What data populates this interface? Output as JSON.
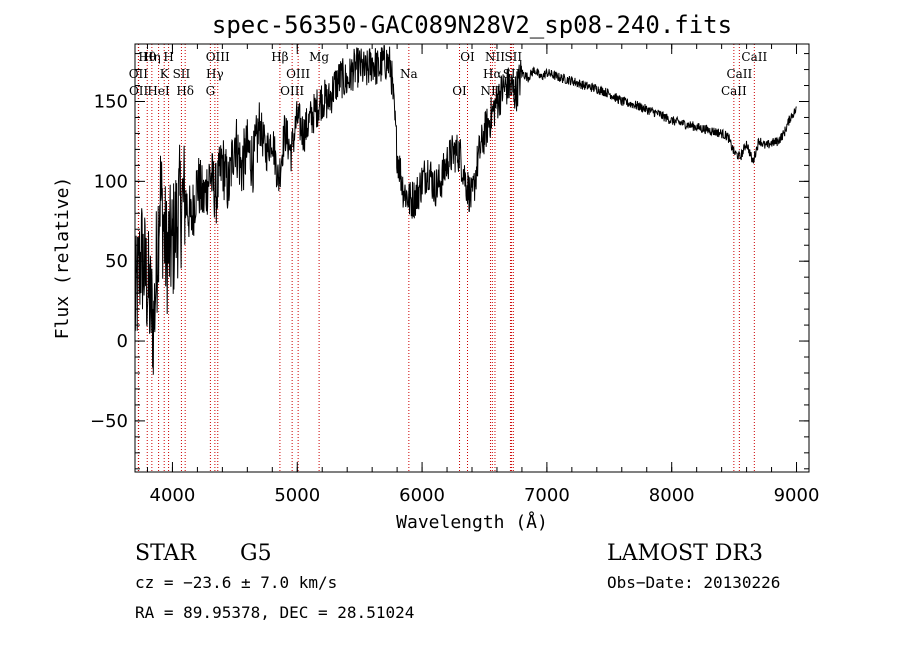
{
  "chart_data": {
    "type": "line",
    "title": "spec-56350-GAC089N28V2_sp08-240.fits",
    "xlabel": "Wavelength (Å)",
    "ylabel": "Flux (relative)",
    "xlim": [
      3700,
      9100
    ],
    "ylim": [
      -82,
      186
    ],
    "xticks": [
      4000,
      5000,
      6000,
      7000,
      8000,
      9000
    ],
    "yticks": [
      -50,
      0,
      50,
      100,
      150
    ],
    "series": [
      {
        "name": "flux",
        "x": [
          3700,
          3750,
          3800,
          3850,
          3900,
          3950,
          4000,
          4050,
          4100,
          4150,
          4200,
          4250,
          4300,
          4350,
          4400,
          4450,
          4500,
          4550,
          4600,
          4650,
          4700,
          4750,
          4800,
          4850,
          4900,
          4950,
          5000,
          5050,
          5100,
          5150,
          5200,
          5250,
          5300,
          5350,
          5400,
          5450,
          5500,
          5550,
          5600,
          5650,
          5700,
          5750,
          5800,
          5850,
          5900,
          5950,
          6000,
          6050,
          6100,
          6150,
          6200,
          6250,
          6300,
          6350,
          6400,
          6450,
          6500,
          6550,
          6600,
          6650,
          6700,
          6750,
          6800,
          6850,
          6900,
          6950,
          7000,
          7100,
          7200,
          7300,
          7400,
          7500,
          7600,
          7700,
          7800,
          7900,
          8000,
          8100,
          8200,
          8300,
          8400,
          8450,
          8500,
          8550,
          8600,
          8650,
          8700,
          8750,
          8800,
          8850,
          8900,
          8950,
          9000
        ],
        "y": [
          20,
          55,
          35,
          10,
          95,
          55,
          60,
          82,
          90,
          75,
          100,
          88,
          105,
          92,
          112,
          95,
          128,
          108,
          120,
          112,
          135,
          118,
          128,
          100,
          132,
          118,
          140,
          130,
          138,
          145,
          152,
          150,
          160,
          165,
          162,
          170,
          172,
          168,
          175,
          170,
          176,
          172,
          118,
          95,
          88,
          90,
          100,
          108,
          96,
          100,
          112,
          118,
          118,
          100,
          88,
          115,
          130,
          140,
          150,
          158,
          160,
          155,
          168,
          165,
          170,
          165,
          168,
          165,
          163,
          160,
          158,
          155,
          150,
          148,
          145,
          142,
          138,
          136,
          134,
          132,
          130,
          128,
          118,
          115,
          124,
          112,
          126,
          122,
          124,
          125,
          130,
          140,
          145
        ]
      }
    ],
    "spectral_lines": [
      {
        "label": "Hθ",
        "wavelength": 3798
      },
      {
        "label": "OII",
        "wavelength": 3727
      },
      {
        "label": "OII",
        "wavelength": 3729
      },
      {
        "label": "Hη",
        "wavelength": 3835
      },
      {
        "label": "K",
        "wavelength": 3934
      },
      {
        "label": "HeI",
        "wavelength": 3889
      },
      {
        "label": "H",
        "wavelength": 3969
      },
      {
        "label": "SII",
        "wavelength": 4072
      },
      {
        "label": "Hδ",
        "wavelength": 4102
      },
      {
        "label": "OIII",
        "wavelength": 4363
      },
      {
        "label": "Hγ",
        "wavelength": 4340
      },
      {
        "label": "G",
        "wavelength": 4304
      },
      {
        "label": "Hβ",
        "wavelength": 4861
      },
      {
        "label": "OIII",
        "wavelength": 5007
      },
      {
        "label": "OIII",
        "wavelength": 4959
      },
      {
        "label": "Mg",
        "wavelength": 5175
      },
      {
        "label": "Na",
        "wavelength": 5894
      },
      {
        "label": "OI",
        "wavelength": 6300
      },
      {
        "label": "OI",
        "wavelength": 6364
      },
      {
        "label": "Hα",
        "wavelength": 6563
      },
      {
        "label": "NII",
        "wavelength": 6548
      },
      {
        "label": "NII",
        "wavelength": 6584
      },
      {
        "label": "SII",
        "wavelength": 6717
      },
      {
        "label": "Li",
        "wavelength": 6708
      },
      {
        "label": "SII",
        "wavelength": 6731
      },
      {
        "label": "CaII",
        "wavelength": 8542
      },
      {
        "label": "CaII",
        "wavelength": 8498
      },
      {
        "label": "CaII",
        "wavelength": 8662
      }
    ],
    "line_color": "#000000",
    "marker_color": "#cc0000"
  },
  "info": {
    "object_class": "STAR",
    "subclass": "G5",
    "survey": "LAMOST DR3",
    "redshift": "cz = −23.6 ± 7.0 km/s",
    "obs_date": "Obs−Date: 20130226",
    "coords": "RA =  89.95378, DEC =  28.51024"
  }
}
